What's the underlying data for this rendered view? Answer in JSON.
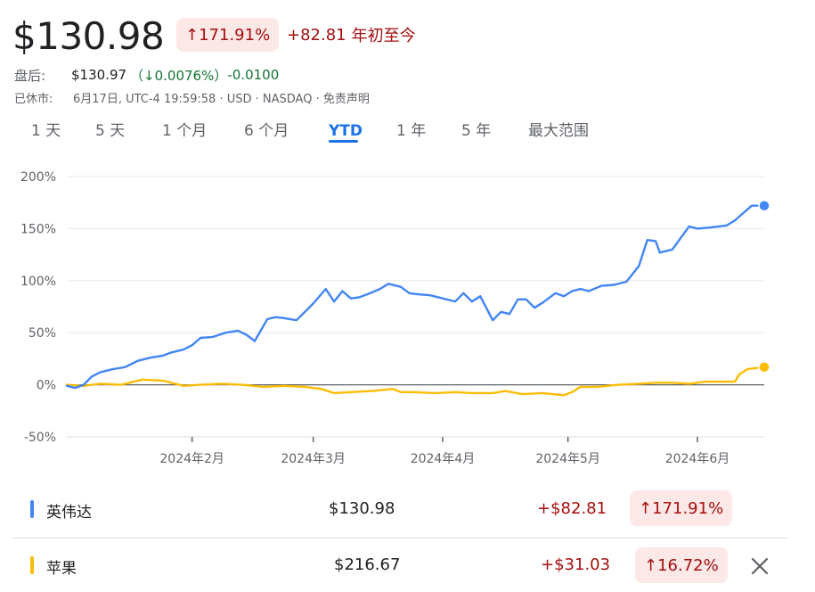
{
  "header": {
    "price": "$130.98",
    "pct_change": "↑171.91%",
    "abs_change": "+82.81",
    "period_label": "年初至今"
  },
  "after_hours": {
    "label": "盘后:",
    "price": "$130.97",
    "pct": "（↓0.0076%）",
    "change": "-0.0100"
  },
  "market_status": {
    "label": "已休市:",
    "info": "6月17日, UTC-4 19:59:58 · USD · NASDAQ · 免责声明"
  },
  "tabs": [
    "1 天",
    "5 天",
    "1 个月",
    "6 个月",
    "YTD",
    "1 年",
    "5 年",
    "最大范围"
  ],
  "active_tab": "YTD",
  "colors": {
    "nvda": "#4285f4",
    "aapl": "#fbbc04",
    "red": "#a50e0e",
    "green": "#137333"
  },
  "chart_data": {
    "type": "line",
    "y_unit": "%",
    "ylim": [
      -50,
      200
    ],
    "y_ticks": [
      200,
      150,
      100,
      50,
      0,
      -50
    ],
    "y_tick_labels": [
      "200%",
      "150%",
      "100%",
      "50%",
      "0%",
      "-50%"
    ],
    "x_ticks": [
      "2024-02-01",
      "2024-03-01",
      "2024-04-01",
      "2024-05-01",
      "2024-06-01"
    ],
    "x_tick_labels": [
      "2024年2月",
      "2024年3月",
      "2024年4月",
      "2024年5月",
      "2024年6月"
    ],
    "x_range": [
      "2024-01-02",
      "2024-06-17"
    ],
    "grid": true,
    "series": [
      {
        "name": "英伟达",
        "color": "#4285f4",
        "x": [
          "2024-01-02",
          "2024-01-04",
          "2024-01-06",
          "2024-01-08",
          "2024-01-10",
          "2024-01-13",
          "2024-01-16",
          "2024-01-19",
          "2024-01-22",
          "2024-01-25",
          "2024-01-27",
          "2024-01-30",
          "2024-02-01",
          "2024-02-03",
          "2024-02-06",
          "2024-02-09",
          "2024-02-12",
          "2024-02-14",
          "2024-02-16",
          "2024-02-19",
          "2024-02-21",
          "2024-02-23",
          "2024-02-26",
          "2024-02-28",
          "2024-03-01",
          "2024-03-04",
          "2024-03-06",
          "2024-03-08",
          "2024-03-10",
          "2024-03-12",
          "2024-03-14",
          "2024-03-17",
          "2024-03-19",
          "2024-03-22",
          "2024-03-24",
          "2024-03-26",
          "2024-03-29",
          "2024-04-01",
          "2024-04-04",
          "2024-04-06",
          "2024-04-08",
          "2024-04-10",
          "2024-04-13",
          "2024-04-15",
          "2024-04-17",
          "2024-04-19",
          "2024-04-21",
          "2024-04-23",
          "2024-04-25",
          "2024-04-28",
          "2024-04-30",
          "2024-05-02",
          "2024-05-04",
          "2024-05-06",
          "2024-05-09",
          "2024-05-12",
          "2024-05-15",
          "2024-05-18",
          "2024-05-20",
          "2024-05-22",
          "2024-05-23",
          "2024-05-26",
          "2024-05-28",
          "2024-05-30",
          "2024-06-01",
          "2024-06-04",
          "2024-06-06",
          "2024-06-08",
          "2024-06-10",
          "2024-06-12",
          "2024-06-14",
          "2024-06-17"
        ],
        "y": [
          -1,
          -3,
          0,
          8,
          12,
          15,
          17,
          23,
          26,
          28,
          31,
          34,
          38,
          45,
          46,
          50,
          52,
          48,
          42,
          63,
          65,
          64,
          62,
          70,
          78,
          92,
          80,
          90,
          83,
          84,
          87,
          92,
          97,
          94,
          88,
          87,
          86,
          83,
          80,
          88,
          80,
          85,
          62,
          70,
          68,
          82,
          82,
          74,
          79,
          88,
          85,
          90,
          92,
          90,
          95,
          96,
          99,
          114,
          139,
          138,
          127,
          130,
          141,
          152,
          150,
          151,
          152,
          153,
          158,
          165,
          172,
          172
        ]
      },
      {
        "name": "苹果",
        "color": "#fbbc04",
        "x": [
          "2024-01-02",
          "2024-01-06",
          "2024-01-10",
          "2024-01-15",
          "2024-01-20",
          "2024-01-25",
          "2024-01-30",
          "2024-02-03",
          "2024-02-08",
          "2024-02-13",
          "2024-02-18",
          "2024-02-23",
          "2024-02-28",
          "2024-03-03",
          "2024-03-06",
          "2024-03-10",
          "2024-03-15",
          "2024-03-20",
          "2024-03-22",
          "2024-03-25",
          "2024-03-30",
          "2024-04-04",
          "2024-04-08",
          "2024-04-13",
          "2024-04-16",
          "2024-04-20",
          "2024-04-25",
          "2024-04-30",
          "2024-05-02",
          "2024-05-04",
          "2024-05-08",
          "2024-05-13",
          "2024-05-18",
          "2024-05-22",
          "2024-05-26",
          "2024-05-30",
          "2024-06-03",
          "2024-06-07",
          "2024-06-10",
          "2024-06-11",
          "2024-06-13",
          "2024-06-17"
        ],
        "y": [
          0,
          -1,
          1,
          0,
          5,
          4,
          -1,
          0,
          1,
          0,
          -2,
          -1,
          -2,
          -4,
          -8,
          -7,
          -6,
          -4,
          -7,
          -7,
          -8,
          -7,
          -8,
          -8,
          -6,
          -9,
          -8,
          -10,
          -7,
          -2,
          -2,
          0,
          1,
          2,
          2,
          1,
          3,
          3,
          3,
          10,
          15,
          17
        ]
      }
    ]
  },
  "legend": [
    {
      "name": "英伟达",
      "price": "$130.98",
      "change": "+$82.81",
      "pct": "↑171.91%"
    },
    {
      "name": "苹果",
      "price": "$216.67",
      "change": "+$31.03",
      "pct": "↑16.72%"
    }
  ]
}
